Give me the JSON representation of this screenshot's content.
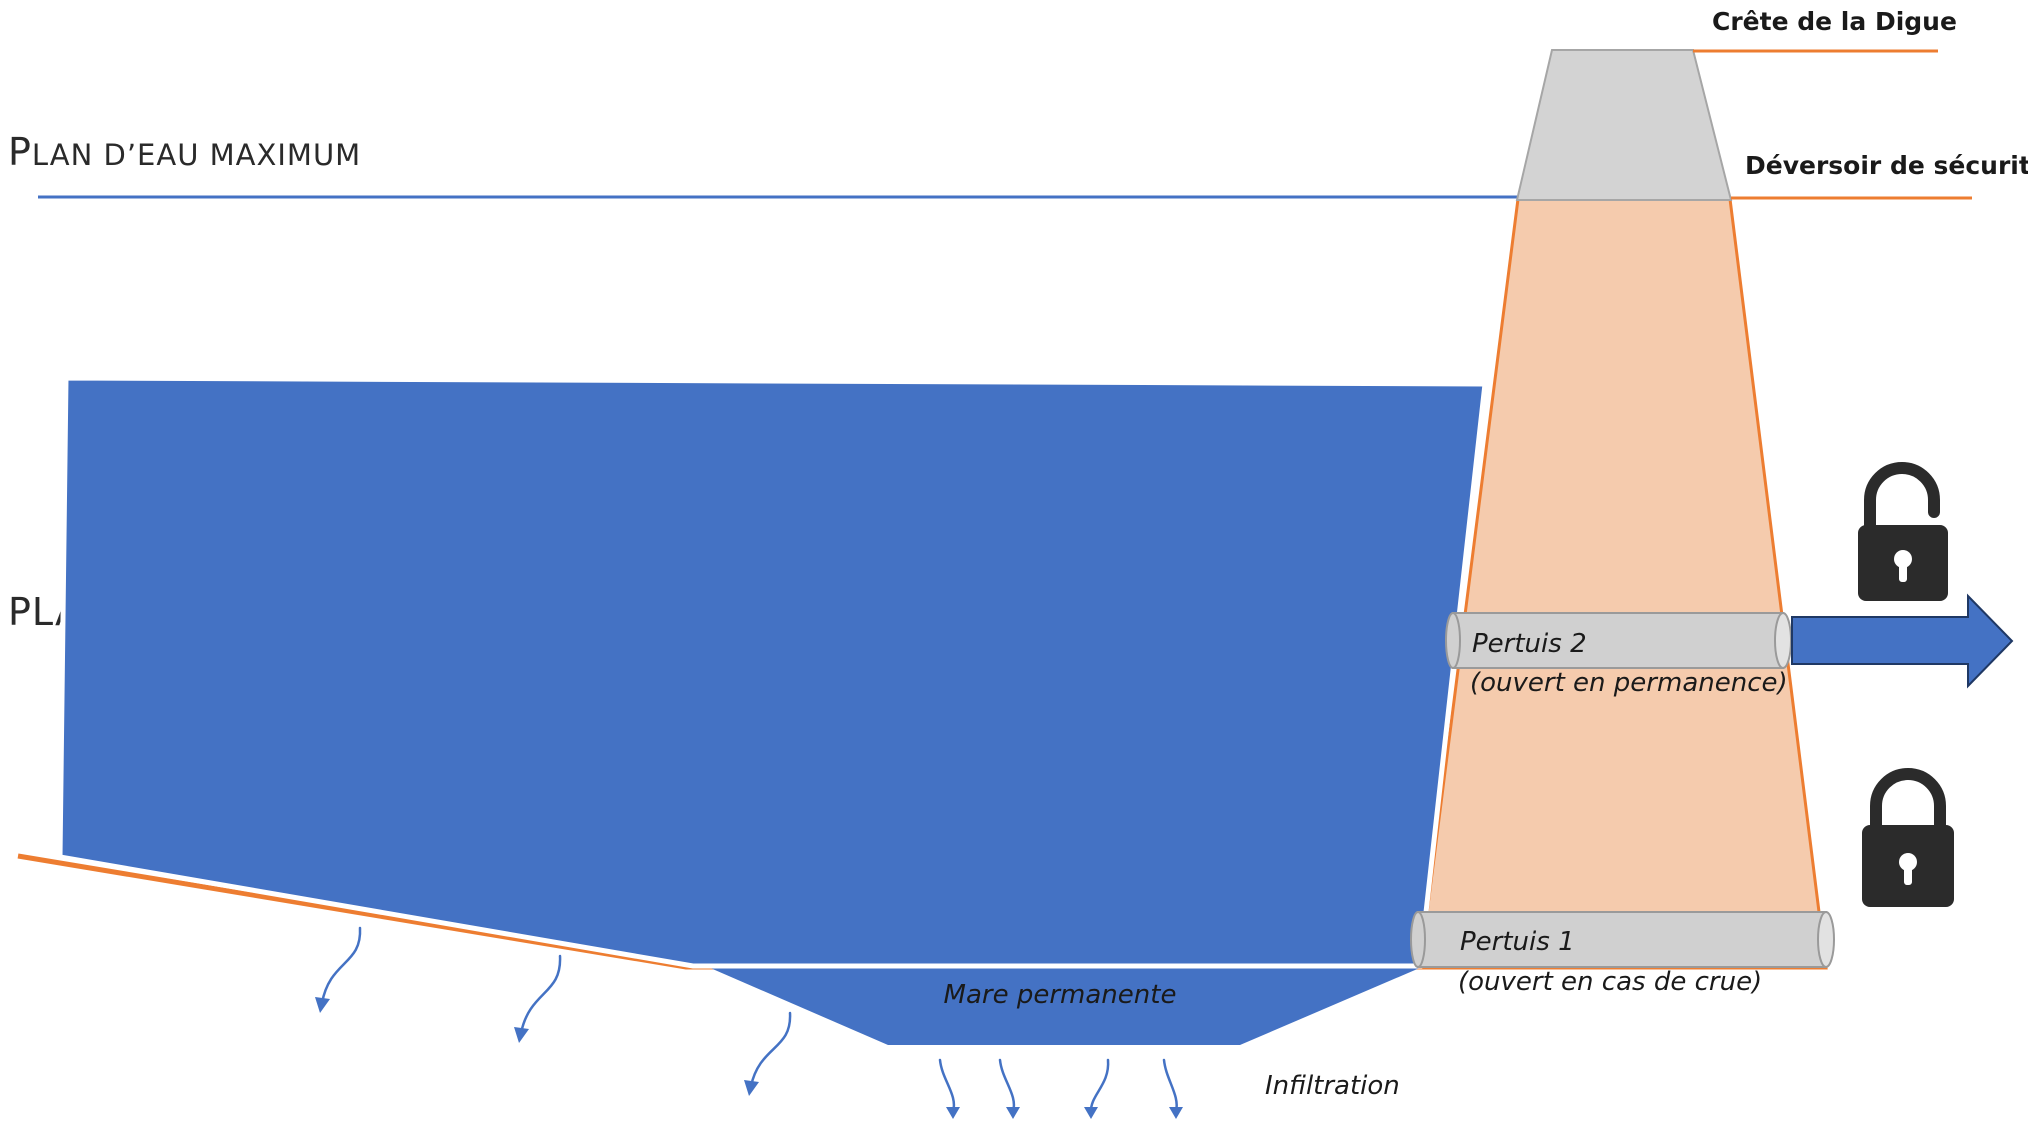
{
  "levels": {
    "max_water_prefix": "P",
    "max_water_rest": "LAN D’EAU MAXIMUM",
    "partial_label": "PLA"
  },
  "dam": {
    "crest_label": "Crête de la Digue",
    "spillway_label": "Déversoir de sécurité"
  },
  "outlets": {
    "pertuis2_title": "Pertuis 2",
    "pertuis2_note": "(ouvert en permanence)",
    "pertuis2_lock": "unlocked-padlock-icon",
    "pertuis1_title": "Pertuis 1",
    "pertuis1_note": "(ouvert en cas de crue)",
    "pertuis1_lock": "locked-padlock-icon"
  },
  "basin": {
    "pond_label": "Mare permanente",
    "infiltration_label": "Infiltration"
  },
  "colors": {
    "water": "#4472c4",
    "embankment": "#f5cbad",
    "embankment_edge": "#ed7d31",
    "crest": "#d3d3d3",
    "pipe": "#d0d0d0",
    "lock": "#2b2b2b"
  }
}
